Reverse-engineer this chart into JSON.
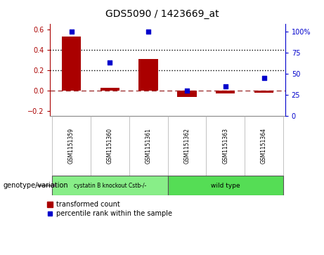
{
  "title": "GDS5090 / 1423669_at",
  "samples": [
    "GSM1151359",
    "GSM1151360",
    "GSM1151361",
    "GSM1151362",
    "GSM1151363",
    "GSM1151364"
  ],
  "bar_values": [
    0.53,
    0.03,
    0.31,
    -0.06,
    -0.03,
    -0.02
  ],
  "scatter_values": [
    100,
    63,
    100,
    30,
    35,
    45
  ],
  "bar_color": "#aa0000",
  "scatter_color": "#0000cc",
  "group1_label": "cystatin B knockout Cstb-/-",
  "group2_label": "wild type",
  "group1_indices": [
    0,
    1,
    2
  ],
  "group2_indices": [
    3,
    4,
    5
  ],
  "group1_color": "#88ee88",
  "group2_color": "#55dd55",
  "ylim_left": [
    -0.25,
    0.65
  ],
  "ylim_right": [
    0,
    108.33
  ],
  "yticks_left": [
    -0.2,
    0.0,
    0.2,
    0.4,
    0.6
  ],
  "yticks_right": [
    0,
    25,
    50,
    75,
    100
  ],
  "ytick_labels_right": [
    "0",
    "25",
    "50",
    "75",
    "100%"
  ],
  "hlines": [
    0.2,
    0.4
  ],
  "bar_width": 0.5,
  "legend_label_bar": "transformed count",
  "legend_label_scatter": "percentile rank within the sample",
  "genotype_label": "genotype/variation",
  "background_color": "#ffffff"
}
